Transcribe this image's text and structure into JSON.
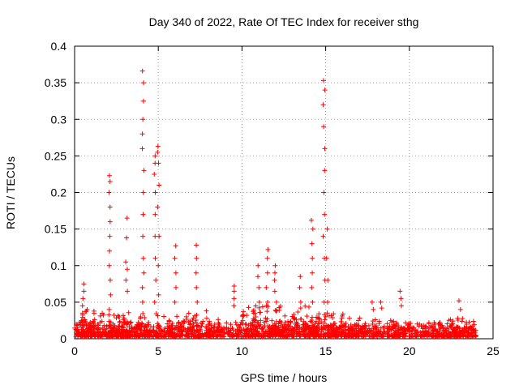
{
  "chart_data": {
    "type": "scatter",
    "title": "Day 340 of 2022, Rate Of TEC Index for receiver sthg",
    "xlabel": "GPS time / hours",
    "ylabel": "ROTI / TECUs",
    "xlim": [
      0,
      25
    ],
    "ylim": [
      0,
      0.4
    ],
    "x_ticks": [
      0,
      5,
      10,
      15,
      20,
      25
    ],
    "x_tick_labels": [
      "0",
      "5",
      "10",
      "15",
      "20",
      "25"
    ],
    "y_ticks": [
      0,
      0.05,
      0.1,
      0.15,
      0.2,
      0.25,
      0.3,
      0.35,
      0.4
    ],
    "y_tick_labels": [
      "0",
      "0.05",
      "0.1",
      "0.15",
      "0.2",
      "0.25",
      "0.3",
      "0.35",
      "0.4"
    ],
    "grid": true,
    "marker": "+",
    "series": [
      {
        "name": "ROTI",
        "color": "#ff0000",
        "bands": [
          {
            "x0": 0.0,
            "x1": 24.0,
            "ymax": 0.025,
            "count": 1300
          },
          {
            "x0": 0.3,
            "x1": 4.5,
            "ymax": 0.045,
            "count": 180
          },
          {
            "x0": 4.8,
            "x1": 9.0,
            "ymax": 0.04,
            "count": 140
          },
          {
            "x0": 10.0,
            "x1": 15.5,
            "ymax": 0.05,
            "count": 260
          },
          {
            "x0": 15.5,
            "x1": 19.8,
            "ymax": 0.035,
            "count": 130
          },
          {
            "x0": 22.3,
            "x1": 23.6,
            "ymax": 0.035,
            "count": 60
          }
        ],
        "spikes": [
          {
            "x": 0.5,
            "y": [
              0.035,
              0.045,
              0.055,
              0.065,
              0.075
            ]
          },
          {
            "x": 2.1,
            "y": [
              0.04,
              0.06,
              0.08,
              0.1,
              0.12,
              0.14,
              0.16,
              0.18,
              0.2,
              0.215,
              0.223
            ]
          },
          {
            "x": 3.1,
            "y": [
              0.065,
              0.08,
              0.095,
              0.105,
              0.138,
              0.165
            ]
          },
          {
            "x": 4.1,
            "y": [
              0.05,
              0.07,
              0.09,
              0.11,
              0.14,
              0.17,
              0.2,
              0.23,
              0.26,
              0.28,
              0.3,
              0.325,
              0.35,
              0.366
            ]
          },
          {
            "x": 4.8,
            "y": [
              0.05,
              0.08,
              0.11,
              0.14,
              0.17,
              0.2,
              0.225,
              0.24,
              0.25
            ]
          },
          {
            "x": 5.0,
            "y": [
              0.06,
              0.1,
              0.14,
              0.18,
              0.21,
              0.24,
              0.255,
              0.263
            ]
          },
          {
            "x": 6.0,
            "y": [
              0.05,
              0.07,
              0.09,
              0.11,
              0.127
            ]
          },
          {
            "x": 7.3,
            "y": [
              0.05,
              0.07,
              0.09,
              0.11,
              0.128
            ]
          },
          {
            "x": 9.5,
            "y": [
              0.045,
              0.055,
              0.065,
              0.072
            ]
          },
          {
            "x": 11.0,
            "y": [
              0.05,
              0.07,
              0.085,
              0.1
            ]
          },
          {
            "x": 11.5,
            "y": [
              0.05,
              0.07,
              0.09,
              0.11,
              0.122
            ]
          },
          {
            "x": 12.0,
            "y": [
              0.05,
              0.065,
              0.08,
              0.09,
              0.1
            ]
          },
          {
            "x": 13.5,
            "y": [
              0.05,
              0.07,
              0.085
            ]
          },
          {
            "x": 14.2,
            "y": [
              0.05,
              0.07,
              0.09,
              0.11,
              0.13,
              0.15,
              0.162
            ]
          },
          {
            "x": 14.9,
            "y": [
              0.05,
              0.08,
              0.11,
              0.14,
              0.17,
              0.2,
              0.23,
              0.26,
              0.29,
              0.32,
              0.34,
              0.353
            ]
          },
          {
            "x": 15.1,
            "y": [
              0.05,
              0.08,
              0.11,
              0.15
            ]
          },
          {
            "x": 17.8,
            "y": [
              0.04,
              0.05
            ]
          },
          {
            "x": 18.3,
            "y": [
              0.042,
              0.05
            ]
          },
          {
            "x": 19.5,
            "y": [
              0.045,
              0.055,
              0.065
            ]
          },
          {
            "x": 23.0,
            "y": [
              0.04,
              0.052
            ]
          }
        ]
      }
    ]
  }
}
